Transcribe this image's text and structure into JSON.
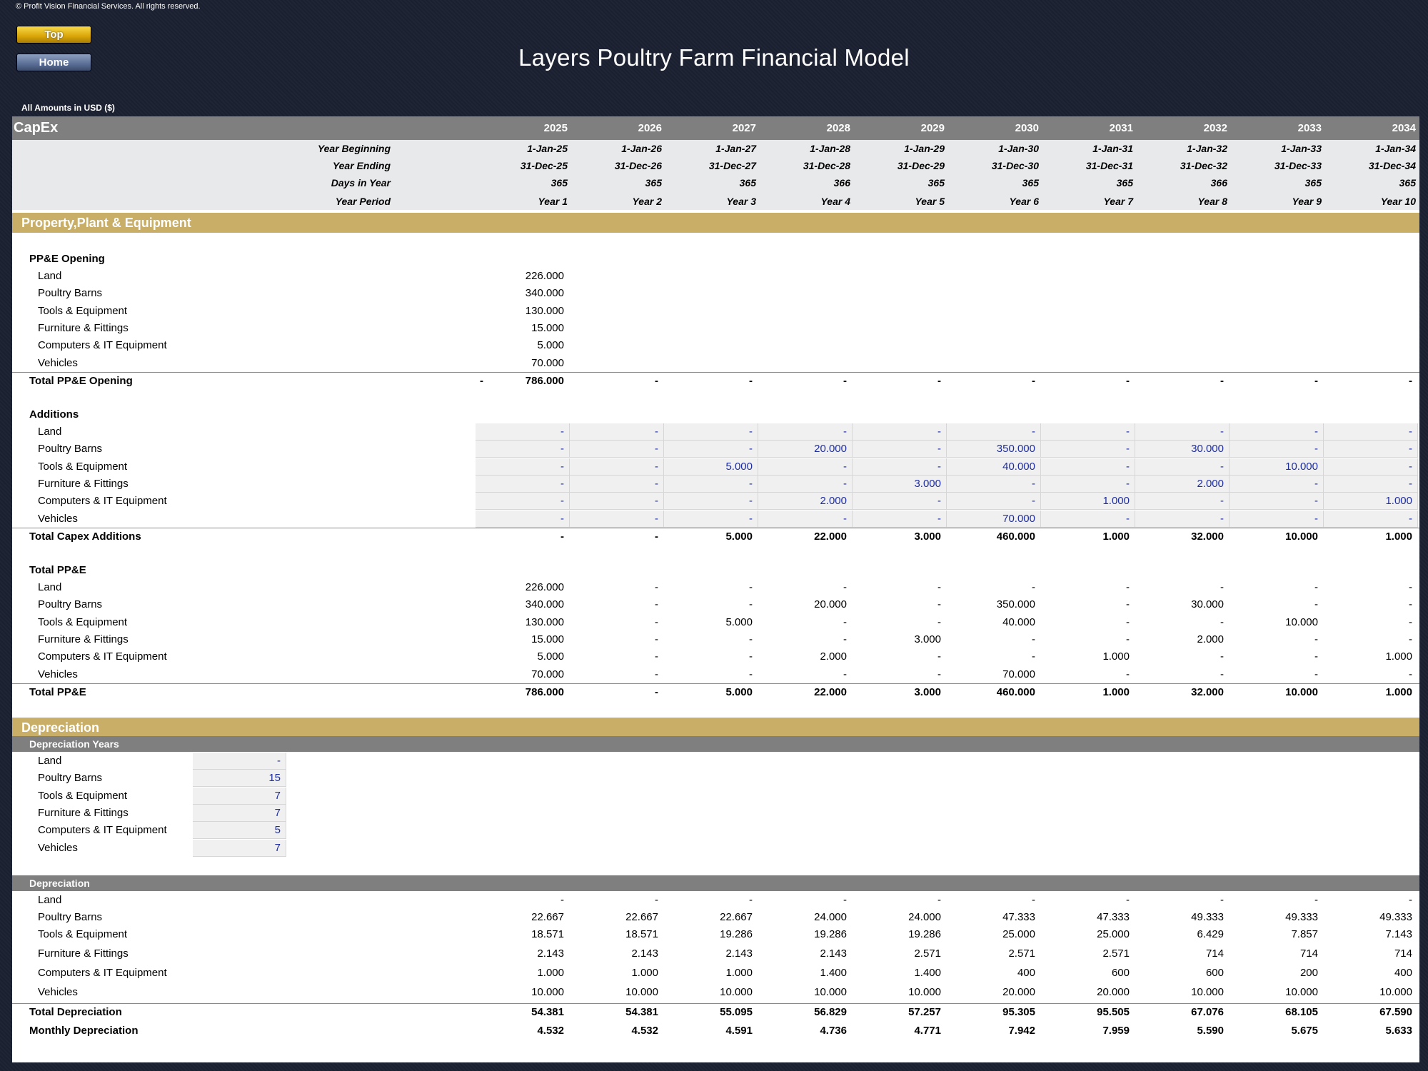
{
  "copyright": "© Profit Vision Financial Services. All rights reserved.",
  "nav": {
    "top": "Top",
    "home": "Home"
  },
  "title": "Layers Poultry Farm Financial Model",
  "amounts_label": "All Amounts in  USD ($)",
  "sheet_title": "CapEx",
  "years": [
    "2025",
    "2026",
    "2027",
    "2028",
    "2029",
    "2030",
    "2031",
    "2032",
    "2033",
    "2034"
  ],
  "info_rows": [
    {
      "label": "Year Beginning",
      "values": [
        "1-Jan-25",
        "1-Jan-26",
        "1-Jan-27",
        "1-Jan-28",
        "1-Jan-29",
        "1-Jan-30",
        "1-Jan-31",
        "1-Jan-32",
        "1-Jan-33",
        "1-Jan-34"
      ]
    },
    {
      "label": "Year Ending",
      "values": [
        "31-Dec-25",
        "31-Dec-26",
        "31-Dec-27",
        "31-Dec-28",
        "31-Dec-29",
        "31-Dec-30",
        "31-Dec-31",
        "31-Dec-32",
        "31-Dec-33",
        "31-Dec-34"
      ]
    },
    {
      "label": "Days in Year",
      "values": [
        "365",
        "365",
        "365",
        "366",
        "365",
        "365",
        "365",
        "366",
        "365",
        "365"
      ]
    },
    {
      "label": "Year Period",
      "values": [
        "Year 1",
        "Year 2",
        "Year 3",
        "Year 4",
        "Year 5",
        "Year 6",
        "Year 7",
        "Year 8",
        "Year 9",
        "Year 10"
      ]
    }
  ],
  "ppe_section": "Property,Plant & Equipment",
  "opening": {
    "heading": "PP&E Opening",
    "items": [
      {
        "label": "Land",
        "value": "226.000"
      },
      {
        "label": "Poultry Barns",
        "value": "340.000"
      },
      {
        "label": "Tools & Equipment",
        "value": "130.000"
      },
      {
        "label": "Furniture & Fittings",
        "value": "15.000"
      },
      {
        "label": "Computers & IT Equipment",
        "value": "5.000"
      },
      {
        "label": "Vehicles",
        "value": "70.000"
      }
    ],
    "total": {
      "label": "Total PP&E Opening",
      "pre": "-",
      "values": [
        "786.000",
        "-",
        "-",
        "-",
        "-",
        "-",
        "-",
        "-",
        "-",
        "-"
      ]
    }
  },
  "additions": {
    "heading": "Additions",
    "items": [
      {
        "label": "Land",
        "values": [
          "-",
          "-",
          "-",
          "-",
          "-",
          "-",
          "-",
          "-",
          "-",
          "-"
        ]
      },
      {
        "label": "Poultry Barns",
        "values": [
          "-",
          "-",
          "-",
          "20.000",
          "-",
          "350.000",
          "-",
          "30.000",
          "-",
          "-"
        ]
      },
      {
        "label": "Tools & Equipment",
        "values": [
          "-",
          "-",
          "5.000",
          "-",
          "-",
          "40.000",
          "-",
          "-",
          "10.000",
          "-"
        ]
      },
      {
        "label": "Furniture & Fittings",
        "values": [
          "-",
          "-",
          "-",
          "-",
          "3.000",
          "-",
          "-",
          "2.000",
          "-",
          "-"
        ]
      },
      {
        "label": "Computers & IT Equipment",
        "values": [
          "-",
          "-",
          "-",
          "2.000",
          "-",
          "-",
          "1.000",
          "-",
          "-",
          "1.000"
        ]
      },
      {
        "label": "Vehicles",
        "values": [
          "-",
          "-",
          "-",
          "-",
          "-",
          "70.000",
          "-",
          "-",
          "-",
          "-"
        ]
      }
    ],
    "total": {
      "label": "Total Capex Additions",
      "values": [
        "-",
        "-",
        "5.000",
        "22.000",
        "3.000",
        "460.000",
        "1.000",
        "32.000",
        "10.000",
        "1.000"
      ]
    }
  },
  "total_ppe": {
    "heading": "Total PP&E",
    "items": [
      {
        "label": "Land",
        "values": [
          "226.000",
          "-",
          "-",
          "-",
          "-",
          "-",
          "-",
          "-",
          "-",
          "-"
        ]
      },
      {
        "label": "Poultry Barns",
        "values": [
          "340.000",
          "-",
          "-",
          "20.000",
          "-",
          "350.000",
          "-",
          "30.000",
          "-",
          "-"
        ]
      },
      {
        "label": "Tools & Equipment",
        "values": [
          "130.000",
          "-",
          "5.000",
          "-",
          "-",
          "40.000",
          "-",
          "-",
          "10.000",
          "-"
        ]
      },
      {
        "label": "Furniture & Fittings",
        "values": [
          "15.000",
          "-",
          "-",
          "-",
          "3.000",
          "-",
          "-",
          "2.000",
          "-",
          "-"
        ]
      },
      {
        "label": "Computers & IT Equipment",
        "values": [
          "5.000",
          "-",
          "-",
          "2.000",
          "-",
          "-",
          "1.000",
          "-",
          "-",
          "1.000"
        ]
      },
      {
        "label": "Vehicles",
        "values": [
          "70.000",
          "-",
          "-",
          "-",
          "-",
          "70.000",
          "-",
          "-",
          "-",
          "-"
        ]
      }
    ],
    "total": {
      "label": "Total PP&E",
      "values": [
        "786.000",
        "-",
        "5.000",
        "22.000",
        "3.000",
        "460.000",
        "1.000",
        "32.000",
        "10.000",
        "1.000"
      ]
    }
  },
  "depreciation_section": "Depreciation",
  "dep_years": {
    "heading": "Depreciation Years",
    "items": [
      {
        "label": "Land",
        "value": "-"
      },
      {
        "label": "Poultry Barns",
        "value": "15"
      },
      {
        "label": "Tools & Equipment",
        "value": "7"
      },
      {
        "label": "Furniture & Fittings",
        "value": "7"
      },
      {
        "label": "Computers & IT Equipment",
        "value": "5"
      },
      {
        "label": "Vehicles",
        "value": "7"
      }
    ]
  },
  "depreciation": {
    "heading": "Depreciation",
    "items": [
      {
        "label": "Land",
        "values": [
          "-",
          "-",
          "-",
          "-",
          "-",
          "-",
          "-",
          "-",
          "-",
          "-"
        ]
      },
      {
        "label": "Poultry Barns",
        "values": [
          "22.667",
          "22.667",
          "22.667",
          "24.000",
          "24.000",
          "47.333",
          "47.333",
          "49.333",
          "49.333",
          "49.333"
        ]
      },
      {
        "label": "Tools & Equipment",
        "values": [
          "18.571",
          "18.571",
          "19.286",
          "19.286",
          "19.286",
          "25.000",
          "25.000",
          "6.429",
          "7.857",
          "7.143"
        ]
      },
      {
        "label": "Furniture & Fittings",
        "values": [
          "2.143",
          "2.143",
          "2.143",
          "2.143",
          "2.571",
          "2.571",
          "2.571",
          "714",
          "714",
          "714"
        ]
      },
      {
        "label": "Computers & IT Equipment",
        "values": [
          "1.000",
          "1.000",
          "1.000",
          "1.400",
          "1.400",
          "400",
          "600",
          "600",
          "200",
          "400"
        ]
      },
      {
        "label": "Vehicles",
        "values": [
          "10.000",
          "10.000",
          "10.000",
          "10.000",
          "10.000",
          "20.000",
          "20.000",
          "10.000",
          "10.000",
          "10.000"
        ]
      }
    ],
    "total": {
      "label": "Total Depreciation",
      "values": [
        "54.381",
        "54.381",
        "55.095",
        "56.829",
        "57.257",
        "95.305",
        "95.505",
        "67.076",
        "68.105",
        "67.590"
      ]
    },
    "monthly": {
      "label": "Monthly Depreciation",
      "values": [
        "4.532",
        "4.532",
        "4.591",
        "4.736",
        "4.771",
        "7.942",
        "7.959",
        "5.590",
        "5.675",
        "5.633"
      ]
    }
  },
  "colors": {
    "band": "#c8ae66",
    "header_grey": "#7f7f7f",
    "input_blue": "#1f2e9e",
    "info_bg": "#e8e9eb"
  }
}
